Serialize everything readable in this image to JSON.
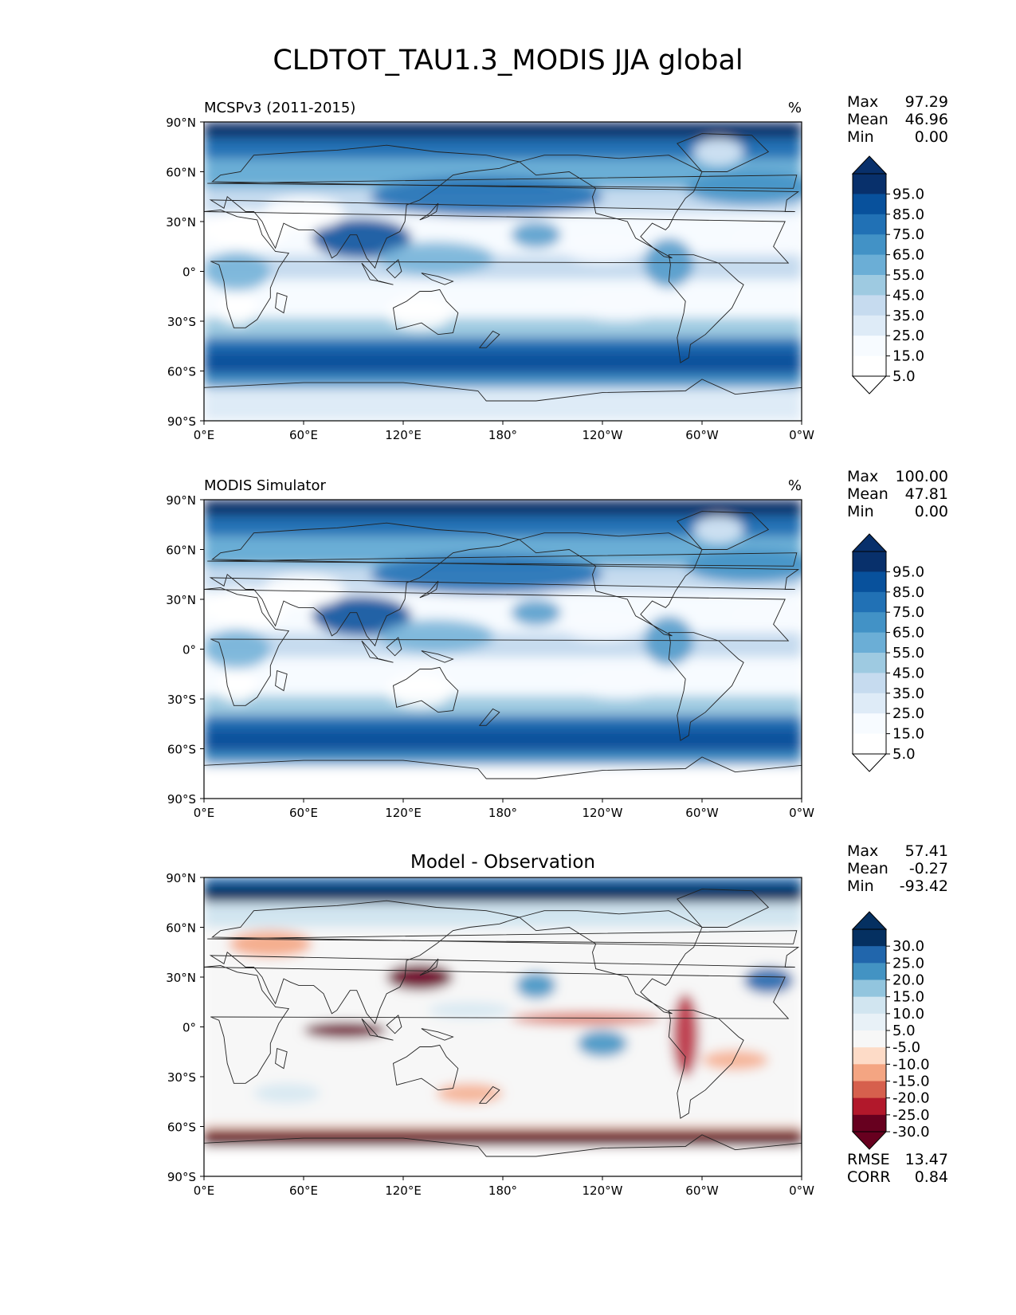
{
  "figure_title": "CLDTOT_TAU1.3_MODIS JJA global",
  "lat_ticks": [
    "90°N",
    "60°N",
    "30°N",
    "0°",
    "30°S",
    "60°S",
    "90°S"
  ],
  "lon_ticks": [
    "0°E",
    "60°E",
    "120°E",
    "180°",
    "120°W",
    "60°W",
    "0°W"
  ],
  "stat_labels": {
    "max": "Max",
    "mean": "Mean",
    "min": "Min",
    "rmse": "RMSE",
    "corr": "CORR"
  },
  "panels": [
    {
      "title_left": "MCSPv3 (2011-2015)",
      "title_center": "",
      "units": "%",
      "stats": {
        "max": "97.29",
        "mean": "46.96",
        "min": "0.00"
      },
      "colorbar_labels": [
        "95.0",
        "85.0",
        "75.0",
        "65.0",
        "55.0",
        "45.0",
        "35.0",
        "25.0",
        "15.0",
        "5.0"
      ],
      "colors": [
        "#08306b",
        "#08519c",
        "#2171b5",
        "#4292c6",
        "#6baed6",
        "#9ecae1",
        "#c6dbef",
        "#deebf7",
        "#f7fbff",
        "#ffffff"
      ]
    },
    {
      "title_left": "MODIS Simulator",
      "title_center": "",
      "units": "%",
      "stats": {
        "max": "100.00",
        "mean": "47.81",
        "min": "0.00"
      },
      "colorbar_labels": [
        "95.0",
        "85.0",
        "75.0",
        "65.0",
        "55.0",
        "45.0",
        "35.0",
        "25.0",
        "15.0",
        "5.0"
      ],
      "colors": [
        "#08306b",
        "#08519c",
        "#2171b5",
        "#4292c6",
        "#6baed6",
        "#9ecae1",
        "#c6dbef",
        "#deebf7",
        "#f7fbff",
        "#ffffff"
      ]
    },
    {
      "title_left": "",
      "title_center": "Model - Observation",
      "units": "",
      "stats": {
        "max": "57.41",
        "mean": "-0.27",
        "min": "-93.42"
      },
      "metrics": {
        "rmse": "13.47",
        "corr": "0.84"
      },
      "colorbar_labels": [
        "30.0",
        "25.0",
        "20.0",
        "15.0",
        "10.0",
        "5.0",
        "-5.0",
        "-10.0",
        "-15.0",
        "-20.0",
        "-25.0",
        "-30.0"
      ],
      "colors": [
        "#053061",
        "#2166ac",
        "#4393c3",
        "#92c5de",
        "#d1e5f0",
        "#e8f1f7",
        "#f7f7f7",
        "#fddbc7",
        "#f4a582",
        "#d6604d",
        "#b2182b",
        "#67001f"
      ]
    }
  ],
  "chart_data": [
    {
      "type": "heatmap",
      "title": "MCSPv3 (2011-2015)",
      "units": "%",
      "season": "JJA",
      "variable": "CLDTOT_TAU1.3_MODIS",
      "x_range": [
        0,
        360
      ],
      "y_range": [
        -90,
        90
      ],
      "stats": {
        "max": 97.29,
        "mean": 46.96,
        "min": 0.0
      },
      "levels": [
        0,
        10,
        20,
        30,
        40,
        50,
        60,
        70,
        80,
        90,
        100
      ]
    },
    {
      "type": "heatmap",
      "title": "MODIS Simulator",
      "units": "%",
      "season": "JJA",
      "variable": "CLDTOT_TAU1.3_MODIS",
      "x_range": [
        0,
        360
      ],
      "y_range": [
        -90,
        90
      ],
      "stats": {
        "max": 100.0,
        "mean": 47.81,
        "min": 0.0
      },
      "levels": [
        0,
        10,
        20,
        30,
        40,
        50,
        60,
        70,
        80,
        90,
        100
      ]
    },
    {
      "type": "heatmap",
      "title": "Model - Observation",
      "units": "%",
      "x_range": [
        0,
        360
      ],
      "y_range": [
        -90,
        90
      ],
      "stats": {
        "max": 57.41,
        "mean": -0.27,
        "min": -93.42
      },
      "metrics": {
        "rmse": 13.47,
        "corr": 0.84
      },
      "levels": [
        -35,
        -30,
        -25,
        -20,
        -15,
        -10,
        -5,
        5,
        10,
        15,
        20,
        25,
        30,
        35
      ]
    }
  ]
}
